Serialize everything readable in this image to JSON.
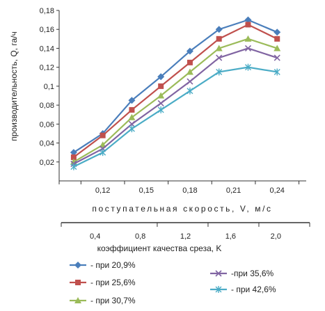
{
  "chart_data": {
    "type": "line",
    "ylabel": "производительность, Q, га/ч",
    "xlabel": "поступательная скорость, V, м/с",
    "x2label": "коэффициент качества среза, K",
    "ylim": [
      0,
      0.18
    ],
    "yticks": [
      "0,02",
      "0,04",
      "0,06",
      "0,08",
      "0,1",
      "0,12",
      "0,14",
      "0,16",
      "0,18"
    ],
    "xlim": [
      0.09,
      0.26
    ],
    "xticks": [
      {
        "value": 0.12,
        "label": "0,12"
      },
      {
        "value": 0.15,
        "label": "0,15"
      },
      {
        "value": 0.18,
        "label": "0,18"
      },
      {
        "value": 0.21,
        "label": "0,21"
      },
      {
        "value": 0.24,
        "label": "0,24"
      }
    ],
    "x2lim": [
      0.1,
      2.3
    ],
    "x2ticks": [
      {
        "value": 0.4,
        "label": "0,4"
      },
      {
        "value": 0.8,
        "label": "0,8"
      },
      {
        "value": 1.2,
        "label": "1,2"
      },
      {
        "value": 1.6,
        "label": "1,6"
      },
      {
        "value": 2.0,
        "label": "2,0"
      }
    ],
    "grid": false,
    "x": [
      0.1,
      0.12,
      0.14,
      0.16,
      0.18,
      0.2,
      0.22,
      0.24
    ],
    "series": [
      {
        "name": "- при 20,9%",
        "color": "#4a7ebb",
        "marker": "diamond",
        "values": [
          0.03,
          0.05,
          0.085,
          0.11,
          0.137,
          0.16,
          0.17,
          0.157
        ]
      },
      {
        "name": "- при 25,6%",
        "color": "#c0504d",
        "marker": "square",
        "values": [
          0.025,
          0.048,
          0.075,
          0.1,
          0.125,
          0.15,
          0.165,
          0.15
        ]
      },
      {
        "name": "- при 30,7%",
        "color": "#9bbb59",
        "marker": "triangle",
        "values": [
          0.02,
          0.038,
          0.067,
          0.09,
          0.115,
          0.14,
          0.15,
          0.14
        ]
      },
      {
        "name": "-при 35,6%",
        "color": "#8064a2",
        "marker": "x",
        "values": [
          0.018,
          0.034,
          0.06,
          0.082,
          0.105,
          0.13,
          0.14,
          0.13
        ]
      },
      {
        "name": "- при 42,6%",
        "color": "#4bacc6",
        "marker": "star",
        "values": [
          0.015,
          0.03,
          0.055,
          0.075,
          0.095,
          0.115,
          0.12,
          0.115
        ]
      }
    ]
  }
}
